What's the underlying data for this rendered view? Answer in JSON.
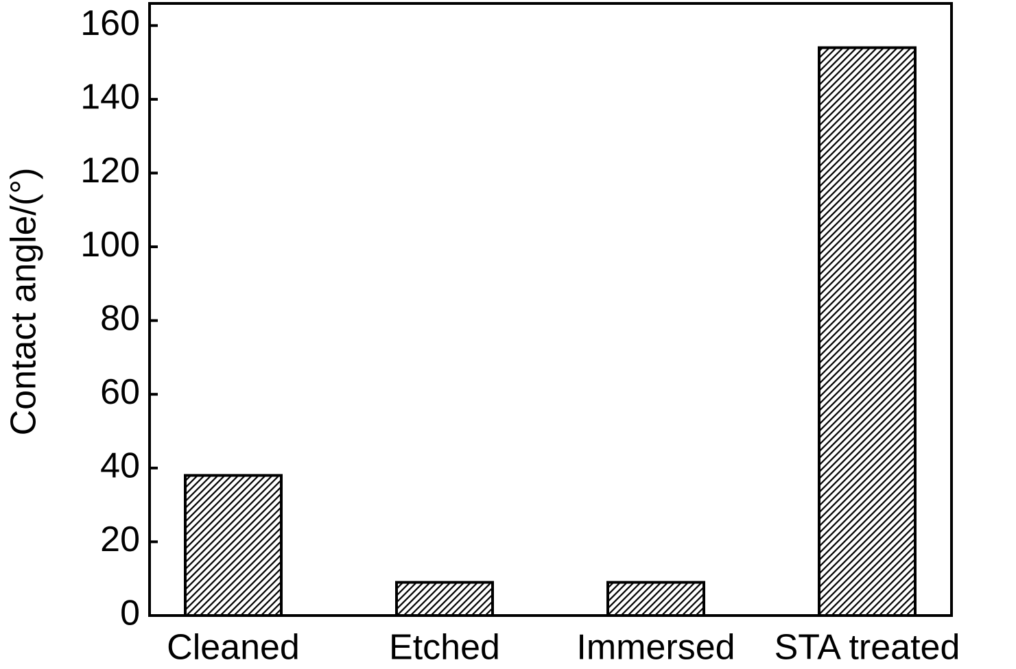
{
  "chart_data": {
    "type": "bar",
    "y_label": "Contact angle/(°)",
    "categories": [
      "Cleaned",
      "Etched",
      "Immersed",
      "STA treated"
    ],
    "values": [
      38,
      9,
      9,
      154
    ],
    "color": "#000000",
    "ylim": [
      0,
      166
    ],
    "yticks": [
      0,
      20,
      40,
      60,
      80,
      100,
      120,
      140,
      160
    ],
    "grid": false
  }
}
